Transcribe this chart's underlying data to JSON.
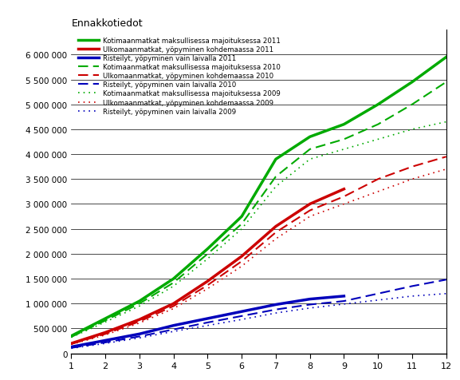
{
  "title": "Ennakkotiedot",
  "months": [
    1,
    2,
    3,
    4,
    5,
    6,
    7,
    8,
    9,
    10,
    11,
    12
  ],
  "green_solid_2011": [
    350000,
    700000,
    1050000,
    1500000,
    2100000,
    2750000,
    3900000,
    4350000,
    4600000,
    5000000,
    5450000,
    5950000
  ],
  "red_solid_2011": [
    200000,
    420000,
    680000,
    1000000,
    1450000,
    1950000,
    2550000,
    3000000,
    3300000,
    null,
    null,
    null
  ],
  "blue_solid_2011": [
    130000,
    260000,
    390000,
    560000,
    700000,
    840000,
    980000,
    1090000,
    1150000,
    null,
    null,
    null
  ],
  "green_dashed_2010": [
    330000,
    660000,
    1000000,
    1420000,
    2000000,
    2600000,
    3550000,
    4100000,
    4300000,
    4600000,
    5000000,
    5450000
  ],
  "red_dashed_2010": [
    190000,
    390000,
    640000,
    950000,
    1370000,
    1850000,
    2430000,
    2870000,
    3150000,
    3500000,
    3750000,
    3950000
  ],
  "blue_dashed_2010": [
    110000,
    220000,
    340000,
    480000,
    620000,
    750000,
    880000,
    980000,
    1050000,
    1200000,
    1350000,
    1480000
  ],
  "green_dotted_2009": [
    320000,
    630000,
    950000,
    1350000,
    1900000,
    2500000,
    3350000,
    3900000,
    4100000,
    4300000,
    4500000,
    4650000
  ],
  "red_dotted_2009": [
    180000,
    370000,
    610000,
    900000,
    1300000,
    1750000,
    2300000,
    2750000,
    3000000,
    3250000,
    3500000,
    3700000
  ],
  "blue_dotted_2009": [
    100000,
    200000,
    310000,
    440000,
    560000,
    680000,
    810000,
    910000,
    990000,
    1070000,
    1150000,
    1200000
  ],
  "legend": [
    "Kotimaanmatkat maksullisessa majoituksessa 2011",
    "Ulkomaanmatkat, yöpyminen kohdemaassa 2011",
    "Risteilyt, yöpyminen vain laivalla 2011",
    "Kotimaanmatkat maksullisessa majoituksessa 2010",
    "Ulkomaanmatkat, yöpyminen kohdemaassa 2010",
    "Risteilyt, yöpyminen vain laivalla 2010",
    "Kotimaanmatkat maksullisessa majoituksessa 2009",
    "Ulkomaanmatkat, yöpyminen kohdemaassa 2009",
    "Risteilyt, yöpyminen vain laivalla 2009"
  ],
  "green": "#00AA00",
  "red": "#CC0000",
  "blue": "#0000BB",
  "ylim": [
    0,
    6500000
  ],
  "yticks": [
    0,
    500000,
    1000000,
    1500000,
    2000000,
    2500000,
    3000000,
    3500000,
    4000000,
    4500000,
    5000000,
    5500000,
    6000000
  ],
  "lw_solid": 2.5,
  "lw_dash": 1.5,
  "lw_dot": 1.2
}
